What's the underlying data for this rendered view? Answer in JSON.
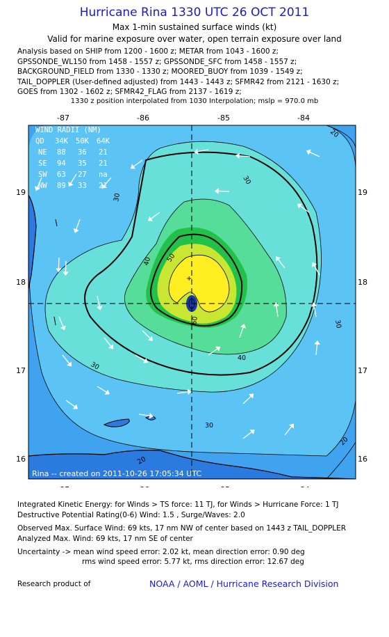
{
  "header": {
    "title": "Hurricane Rina 1330 UTC 26 OCT 2011",
    "subtitle1": "Max 1-min sustained surface winds (kt)",
    "subtitle2": "Valid for marine exposure over water, open terrain exposure over land"
  },
  "analysis_lines": [
    "Analysis based on SHIP from 1200 - 1600 z; METAR from 1043 - 1600 z;",
    "GPSSONDE_WL150 from 1458 - 1557 z; GPSSONDE_SFC from 1458 - 1557 z;",
    "BACKGROUND_FIELD from 1330 - 1330 z; MOORED_BUOY from 1039 - 1549 z;",
    "TAIL_DOPPLER (User-defined adjusted) from 1443 - 1443 z; SFMR42 from 2121 - 1630 z;",
    "GOES from 1302 - 1602 z; SFMR42_FLAG from 2137 - 1619 z;"
  ],
  "position_note": "1330 z position interpolated from 1030 Interpolation; mslp = 970.0 mb",
  "map": {
    "lon_ticks": [
      "-87",
      "-86",
      "-85",
      "-84"
    ],
    "lat_ticks": [
      "19",
      "18",
      "17",
      "16"
    ],
    "credit": "Rina -- created on 2011-10-26 17:05:34 UTC",
    "contour_labels": [
      "30",
      "30",
      "30",
      "30",
      "30",
      "40",
      "40",
      "50",
      "60",
      "20",
      "20",
      "20"
    ],
    "colors": {
      "outer": "#2a8ae6",
      "band_20_30": "#3fa3f0",
      "band_30_40": "#5cc3f5",
      "band_40_50": "#66e0d8",
      "band_50_60": "#55dd99",
      "band_60_64": "#22c24a",
      "band_64_plus": "#c8e632",
      "core": "#ffee22",
      "eye": "#1a3aa8"
    }
  },
  "wind_radii": {
    "title": "WIND RADII (NM)",
    "header": [
      "QD",
      "34K",
      "50K",
      "64K"
    ],
    "rows": [
      [
        "NE",
        "88",
        "36",
        "21"
      ],
      [
        "SE",
        "94",
        "35",
        "21"
      ],
      [
        "SW",
        "63",
        "27",
        "na"
      ],
      [
        "NW",
        "89",
        "33",
        "21"
      ]
    ]
  },
  "footer": {
    "ike": "Integrated Kinetic Energy:  for Winds > TS force: 11 TJ,  for Winds > Hurricane Force: 1 TJ",
    "dpr": "Destructive Potential Rating(0-6)   Wind: 1.5 , Surge/Waves: 2.0",
    "obs": "Observed Max. Surface Wind: 69 kts, 17 nm NW of center based on 1443 z TAIL_DOPPLER",
    "analyzed": "Analyzed Max. Wind: 69 kts, 17 nm SE of center",
    "unc1": "Uncertainty -> mean wind speed error: 2.02 kt,   mean direction error: 0.90 deg",
    "unc2": "rms wind speed error: 5.77 kt,   rms direction error: 12.67 deg",
    "research": "Research product of",
    "org": "NOAA / AOML / Hurricane Research Division"
  }
}
